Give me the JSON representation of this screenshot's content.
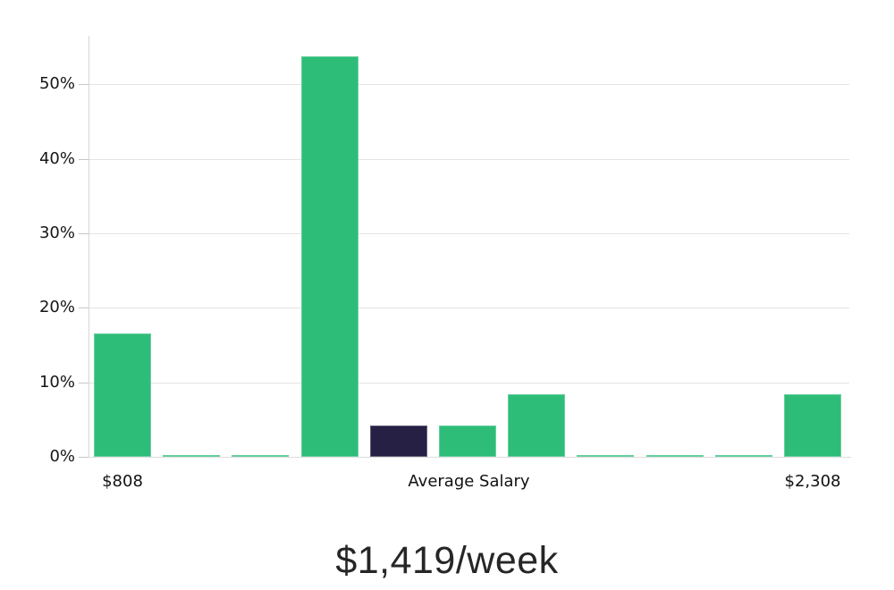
{
  "chart_data": {
    "type": "bar",
    "title": "$1,419/week",
    "values": [
      16.5,
      0.2,
      0.2,
      53.8,
      4.2,
      4.2,
      8.4,
      0.2,
      0.2,
      0.2,
      8.4
    ],
    "bar_colors": [
      "green",
      "green",
      "green",
      "green",
      "navy",
      "green",
      "green",
      "green",
      "green",
      "green",
      "green"
    ],
    "highlighted_bar_index": 4,
    "y_ticks": [
      {
        "value": 0,
        "label": "0%"
      },
      {
        "value": 10,
        "label": "10%"
      },
      {
        "value": 20,
        "label": "20%"
      },
      {
        "value": 30,
        "label": "30%"
      },
      {
        "value": 40,
        "label": "40%"
      },
      {
        "value": 50,
        "label": "50%"
      }
    ],
    "x_labels": [
      {
        "label": "$808",
        "anchor": "bar",
        "bar_index": 0
      },
      {
        "label": "Average Salary",
        "anchor": "center"
      },
      {
        "label": "$2,308",
        "anchor": "bar",
        "bar_index": 10
      }
    ],
    "ylim": [
      0,
      56.5
    ],
    "grid": true,
    "legend": false,
    "xlabel": "",
    "ylabel": "",
    "colors": {
      "green": "#2ebd78",
      "navy": "#262144"
    }
  }
}
